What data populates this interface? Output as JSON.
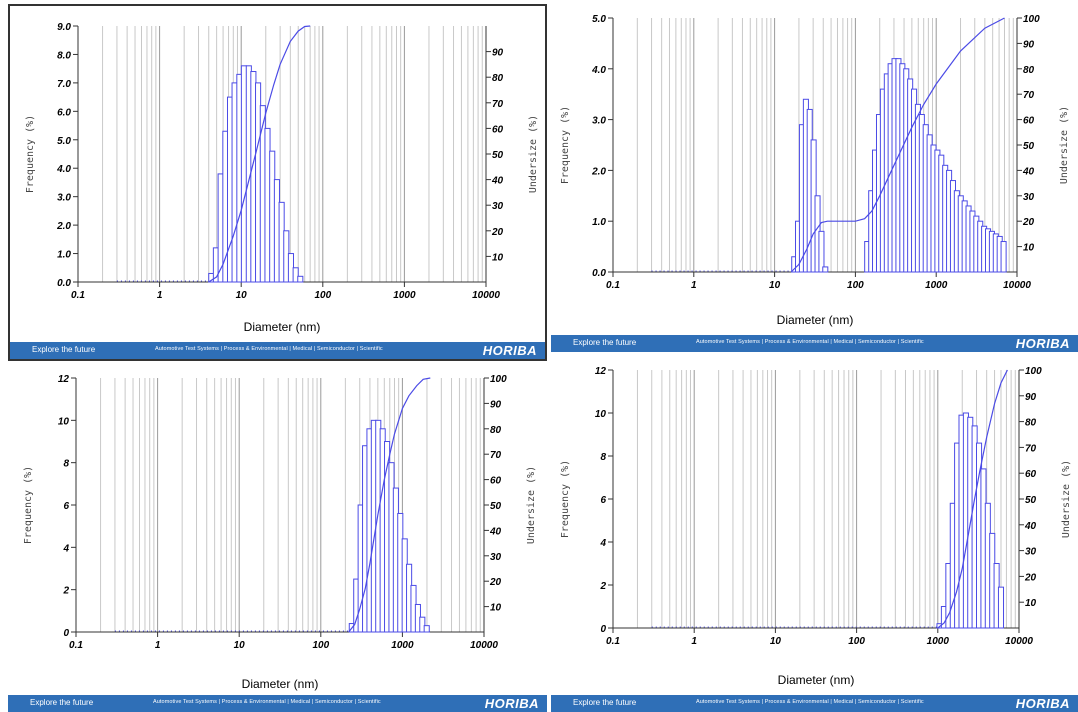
{
  "footer": {
    "explore": "Explore the future",
    "links": "Automotive Test Systems | Process & Environmental | Medical | Semiconductor | Scientific",
    "brand": "HORIBA"
  },
  "chart_data": [
    {
      "type": "bar",
      "xlabel": "Diameter (nm)",
      "ylabel": "Frequency (%)",
      "y2label": "Undersize (%)",
      "xscale": "log",
      "xlim": [
        0.1,
        10000
      ],
      "xticks": [
        "0.1",
        "1",
        "10",
        "100",
        "1000",
        "10000"
      ],
      "ylim": [
        0,
        9
      ],
      "yticks": [
        "0.0",
        "1.0",
        "2.0",
        "3.0",
        "4.0",
        "5.0",
        "6.0",
        "7.0",
        "8.0",
        "9.0"
      ],
      "y2lim": [
        0,
        100
      ],
      "y2ticks": [
        "10",
        "20",
        "30",
        "40",
        "50",
        "60",
        "70",
        "80",
        "90"
      ],
      "grid": true,
      "series": [
        {
          "kind": "bar",
          "x": [
            4.3,
            4.9,
            5.6,
            6.4,
            7.3,
            8.3,
            9.5,
            10.8,
            12.4,
            14.1,
            16.1,
            18.4,
            21.0,
            24.0,
            27.4,
            31.3,
            35.7,
            40.7,
            46.5,
            53.0
          ],
          "y": [
            0.3,
            1.2,
            3.8,
            5.3,
            6.5,
            7.0,
            7.3,
            7.6,
            7.6,
            7.4,
            7.0,
            6.2,
            5.4,
            4.6,
            3.6,
            2.8,
            1.8,
            1.0,
            0.5,
            0.2
          ]
        },
        {
          "kind": "line",
          "x": [
            4.0,
            5.0,
            6.0,
            8.0,
            10.0,
            15.0,
            20.0,
            25.0,
            30.0,
            40.0,
            50.0,
            60.0,
            70.0
          ],
          "y": [
            0,
            2,
            7,
            18,
            28,
            50,
            66,
            77,
            85,
            94,
            98,
            99.8,
            100
          ]
        }
      ]
    },
    {
      "type": "bar",
      "xlabel": "Diameter (nm)",
      "ylabel": "Frequency (%)",
      "y2label": "Undersize (%)",
      "xscale": "log",
      "xlim": [
        0.1,
        10000
      ],
      "xticks": [
        "0.1",
        "1",
        "10",
        "100",
        "1000",
        "10000"
      ],
      "ylim": [
        0,
        5
      ],
      "yticks": [
        "0.0",
        "1.0",
        "2.0",
        "3.0",
        "4.0",
        "5.0"
      ],
      "y2lim": [
        0,
        100
      ],
      "y2ticks": [
        "10",
        "20",
        "30",
        "40",
        "50",
        "60",
        "70",
        "80",
        "90",
        "100"
      ],
      "grid": true,
      "series": [
        {
          "kind": "bar",
          "x": [
            17.5,
            19.5,
            21.8,
            24.4,
            27.2,
            30.4,
            34.0,
            38.0,
            42.4,
            140,
            157,
            175,
            196,
            219,
            245,
            273,
            305,
            341,
            381,
            426,
            476,
            532,
            594,
            664,
            742,
            829,
            926,
            1035,
            1156,
            1292,
            1444,
            1613,
            1802,
            2014,
            2250,
            2514,
            2809,
            3139,
            3507,
            3919,
            4379,
            4893,
            5467,
            6108,
            6825
          ],
          "y": [
            0.3,
            1.0,
            2.9,
            3.4,
            3.2,
            2.6,
            1.5,
            0.8,
            0.1,
            0.6,
            1.6,
            2.4,
            3.1,
            3.6,
            3.9,
            4.1,
            4.2,
            4.2,
            4.1,
            4.0,
            3.8,
            3.6,
            3.3,
            3.1,
            2.9,
            2.7,
            2.5,
            2.4,
            2.3,
            2.1,
            2.0,
            1.8,
            1.6,
            1.5,
            1.4,
            1.3,
            1.2,
            1.1,
            1.0,
            0.9,
            0.85,
            0.8,
            0.75,
            0.7,
            0.6
          ]
        },
        {
          "kind": "line",
          "x": [
            16,
            20,
            25,
            30,
            38,
            45,
            60,
            100,
            130,
            160,
            200,
            300,
            500,
            700,
            1000,
            2000,
            4000,
            7000
          ],
          "y": [
            0,
            3,
            9,
            15,
            19.5,
            20,
            20,
            20,
            21,
            24,
            30,
            42,
            57,
            66,
            74,
            87,
            96,
            100
          ]
        }
      ]
    },
    {
      "type": "bar",
      "xlabel": "Diameter (nm)",
      "ylabel": "Frequency (%)",
      "y2label": "Undersize (%)",
      "xscale": "log",
      "xlim": [
        0.1,
        10000
      ],
      "xticks": [
        "0.1",
        "1",
        "10",
        "100",
        "1000",
        "10000"
      ],
      "ylim": [
        0,
        12
      ],
      "yticks": [
        "0",
        "2",
        "4",
        "6",
        "8",
        "10",
        "12"
      ],
      "y2lim": [
        0,
        100
      ],
      "y2ticks": [
        "10",
        "20",
        "30",
        "40",
        "50",
        "60",
        "70",
        "80",
        "90",
        "100"
      ],
      "grid": true,
      "series": [
        {
          "kind": "bar",
          "x": [
            240,
            272,
            308,
            349,
            395,
            447,
            506,
            573,
            649,
            735,
            832,
            942,
            1067,
            1208,
            1368,
            1549,
            1754,
            1986
          ],
          "y": [
            0.4,
            2.5,
            6.0,
            8.8,
            9.6,
            10.0,
            10.0,
            9.6,
            9.0,
            8.0,
            6.8,
            5.6,
            4.4,
            3.2,
            2.2,
            1.3,
            0.7,
            0.3
          ]
        },
        {
          "kind": "line",
          "x": [
            220,
            260,
            300,
            350,
            400,
            500,
            600,
            700,
            800,
            1000,
            1200,
            1500,
            1800,
            2200
          ],
          "y": [
            0,
            3,
            9,
            17,
            27,
            46,
            60,
            70,
            78,
            88,
            93,
            97,
            99.5,
            100
          ]
        }
      ]
    },
    {
      "type": "bar",
      "xlabel": "Diameter (nm)",
      "ylabel": "Frequency (%)",
      "y2label": "Undersize (%)",
      "xscale": "log",
      "xlim": [
        0.1,
        10000
      ],
      "xticks": [
        "0.1",
        "1",
        "10",
        "100",
        "1000",
        "10000"
      ],
      "ylim": [
        0,
        12
      ],
      "yticks": [
        "0",
        "2",
        "4",
        "6",
        "8",
        "10",
        "12"
      ],
      "y2lim": [
        0,
        100
      ],
      "y2ticks": [
        "10",
        "20",
        "30",
        "40",
        "50",
        "60",
        "70",
        "80",
        "90",
        "100"
      ],
      "grid": true,
      "series": [
        {
          "kind": "bar",
          "x": [
            1050,
            1190,
            1350,
            1530,
            1730,
            1960,
            2220,
            2510,
            2840,
            3220,
            3650,
            4130,
            4680,
            5300,
            6000
          ],
          "y": [
            0.2,
            1.0,
            3.0,
            5.8,
            8.6,
            9.9,
            10.0,
            9.8,
            9.4,
            8.6,
            7.4,
            5.8,
            4.4,
            3.0,
            1.9
          ]
        },
        {
          "kind": "line",
          "x": [
            1000,
            1200,
            1400,
            1700,
            2000,
            2400,
            2800,
            3300,
            4000,
            5000,
            6000,
            7200
          ],
          "y": [
            0,
            2,
            6,
            14,
            23,
            37,
            49,
            61,
            74,
            87,
            95,
            100
          ]
        }
      ]
    }
  ]
}
